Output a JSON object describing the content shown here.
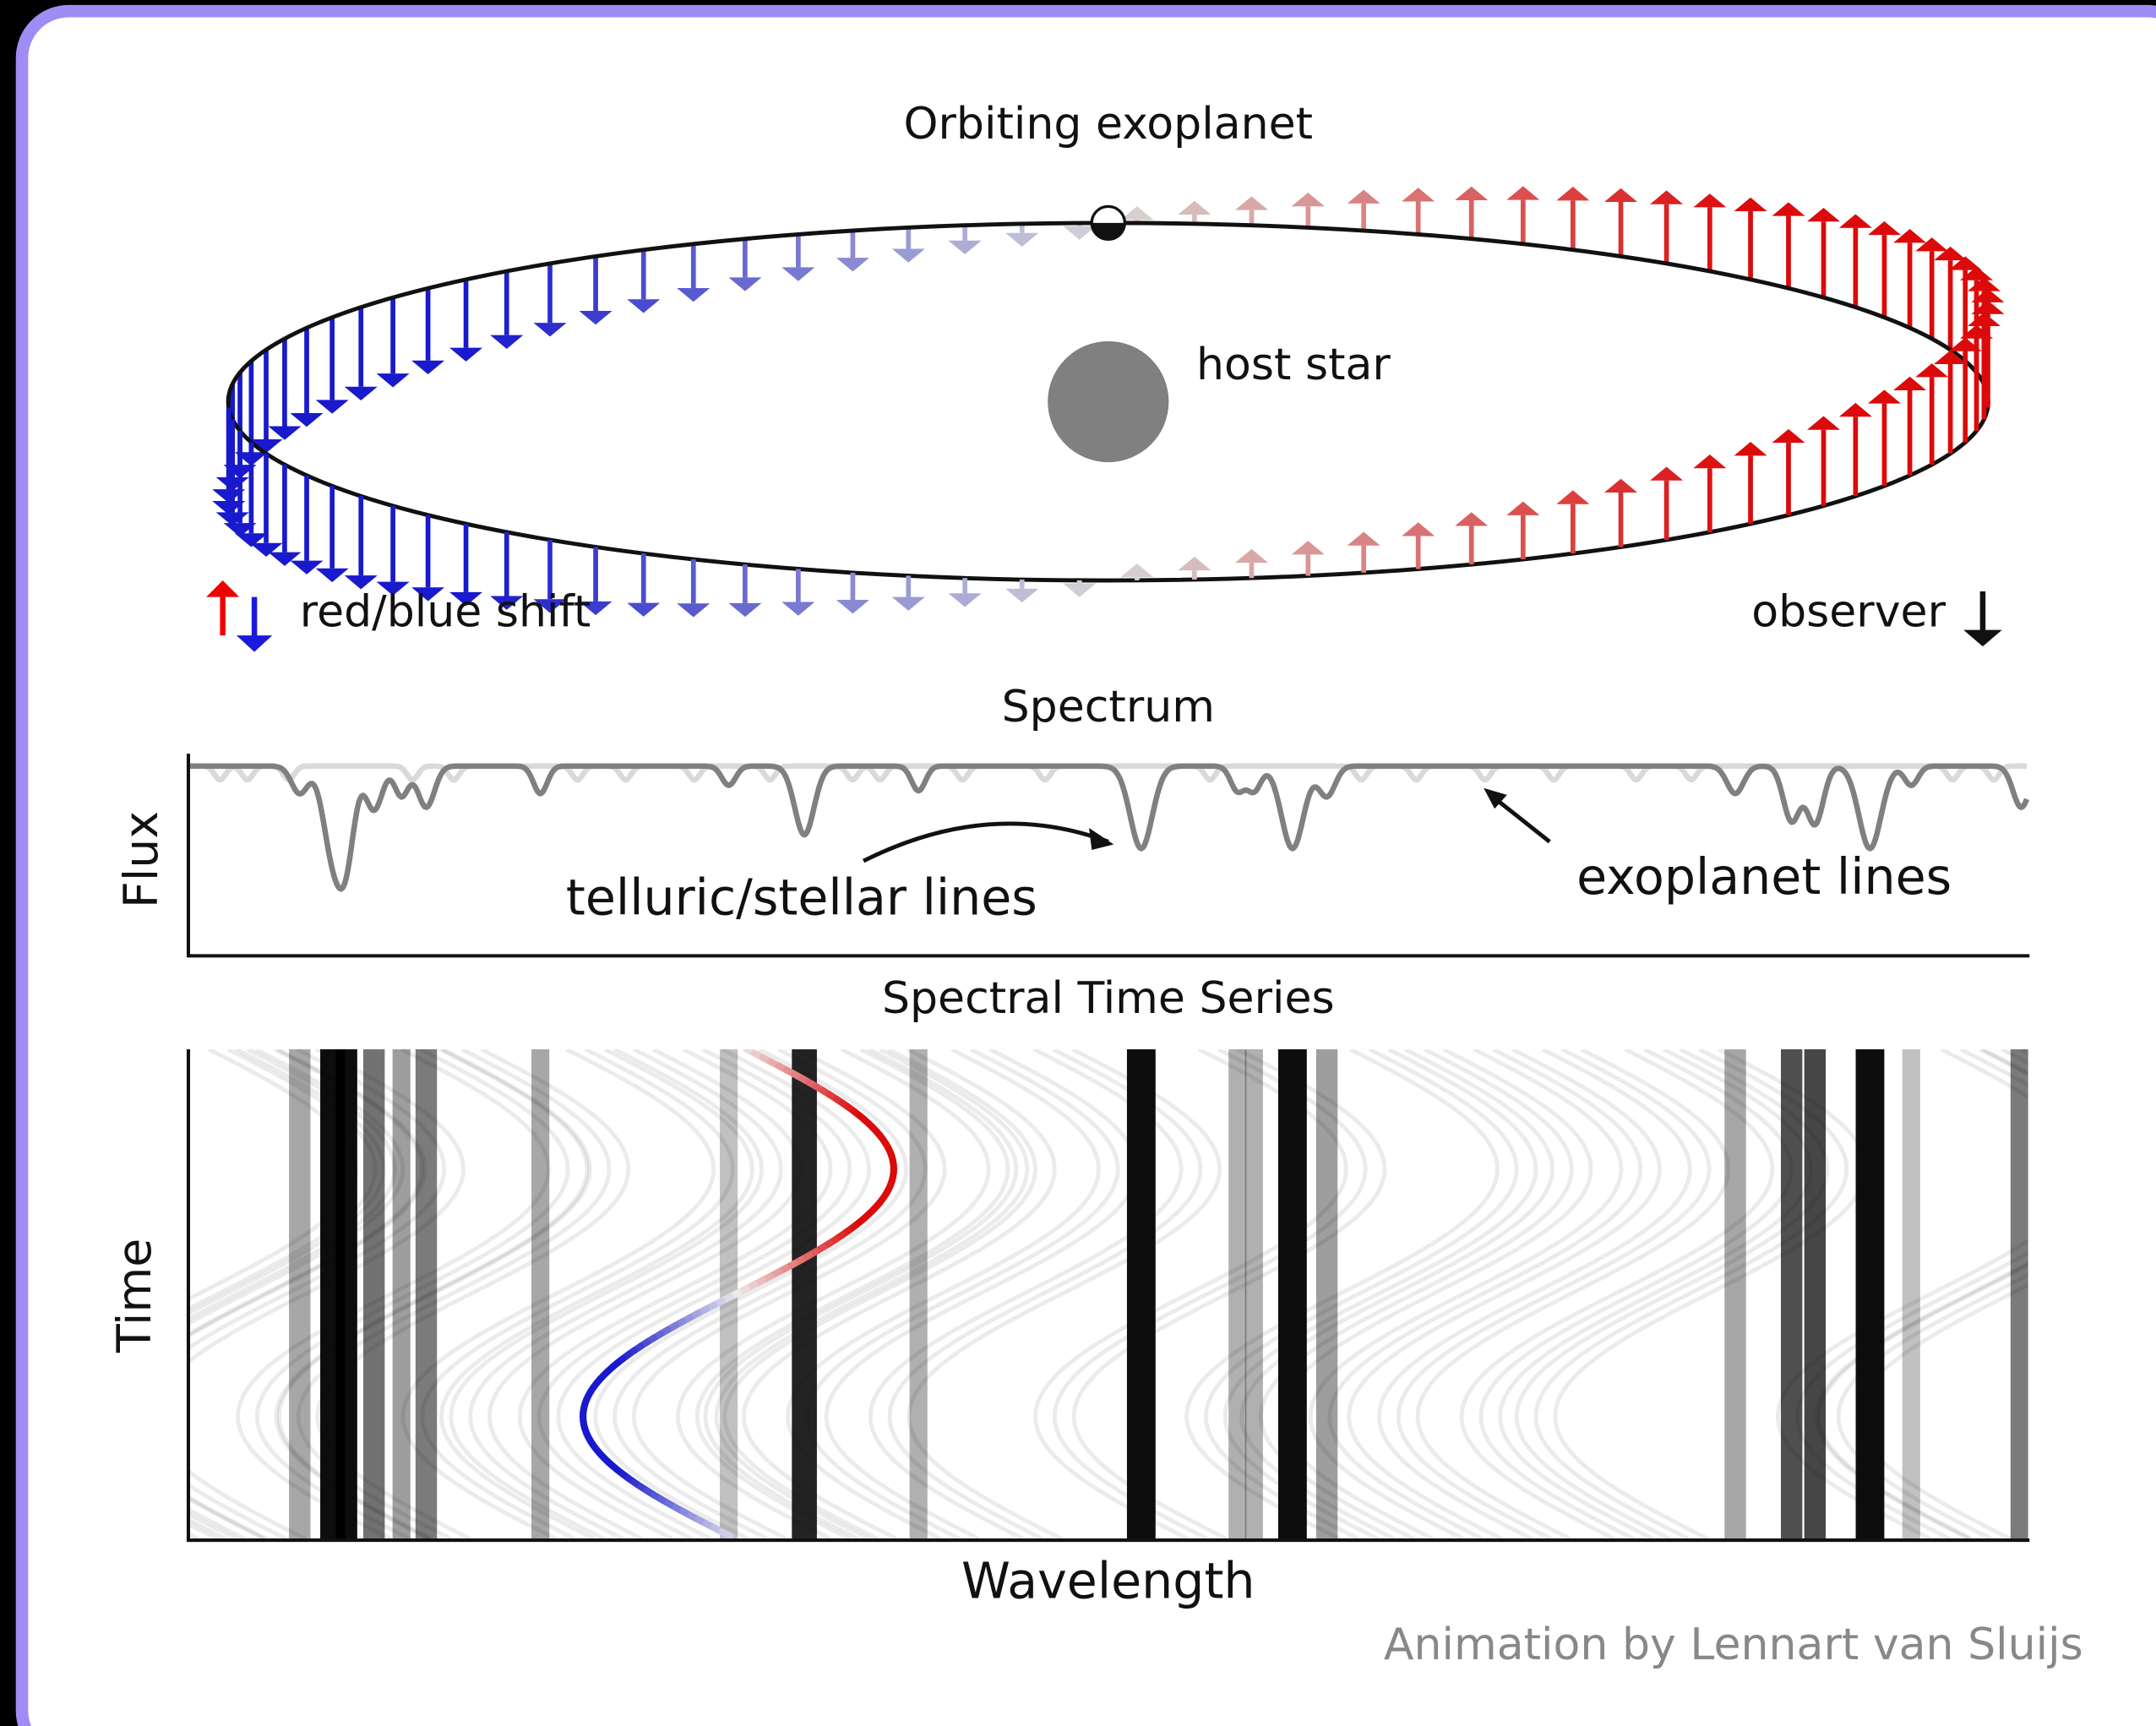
{
  "orbit": {
    "title": "Orbiting exoplanet",
    "star_label": "host star",
    "legend_shift": "red/blue shift",
    "legend_observer": "observer"
  },
  "spectrum": {
    "title": "Spectrum",
    "y_label": "Flux",
    "stellar_label": "telluric/stellar lines",
    "exoplanet_label": "exoplanet lines"
  },
  "time_series": {
    "title": "Spectral Time Series",
    "y_label": "Time",
    "x_label": "Wavelength"
  },
  "credit": "Animation by Lennart van Sluijs"
}
